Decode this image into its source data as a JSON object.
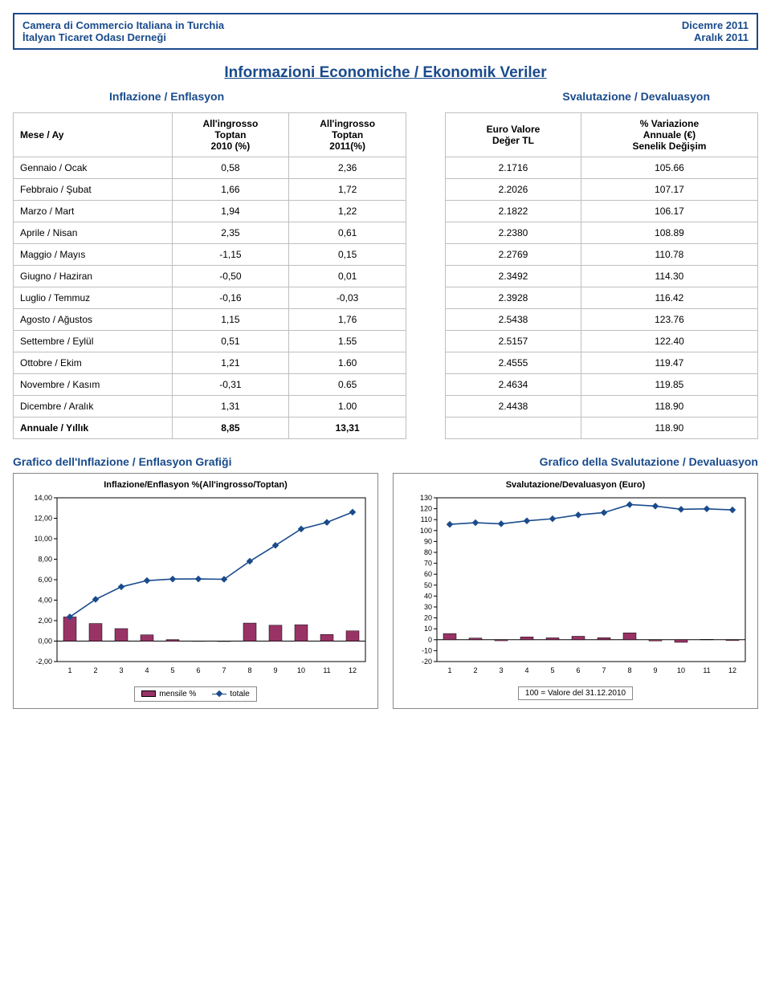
{
  "header": {
    "left1": "Camera di Commercio Italiana in Turchia",
    "left2": "İtalyan Ticaret Odası Derneği",
    "right1": "Dicemre 2011",
    "right2": "Aralık 2011"
  },
  "titles": {
    "main": "Informazioni Economiche / Ekonomik Veriler",
    "sub_left": "Inflazione / Enflasyon",
    "sub_right": "Svalutazione / Devaluasyon",
    "chart_left_heading": "Grafico dell'Inflazione / Enflasyon Grafiği",
    "chart_right_heading": "Grafico della Svalutazione / Devaluasyon"
  },
  "inflation_table": {
    "headers": {
      "col1": "Mese / Ay",
      "col2": "All'ingrosso\nToptan\n2010 (%)",
      "col3": "All'ingrosso\nToptan\n2011(%)"
    },
    "rows": [
      [
        "Gennaio / Ocak",
        "0,58",
        "2,36"
      ],
      [
        "Febbraio / Şubat",
        "1,66",
        "1,72"
      ],
      [
        "Marzo / Mart",
        "1,94",
        "1,22"
      ],
      [
        "Aprile / Nisan",
        "2,35",
        "0,61"
      ],
      [
        "Maggio / Mayıs",
        "-1,15",
        "0,15"
      ],
      [
        "Giugno / Haziran",
        "-0,50",
        "0,01"
      ],
      [
        "Luglio / Temmuz",
        "-0,16",
        "-0,03"
      ],
      [
        "Agosto / Ağustos",
        "1,15",
        "1,76"
      ],
      [
        "Settembre / Eylül",
        "0,51",
        "1.55"
      ],
      [
        "Ottobre / Ekim",
        "1,21",
        "1.60"
      ],
      [
        "Novembre / Kasım",
        "-0,31",
        "0.65"
      ],
      [
        "Dicembre / Aralık",
        "1,31",
        "1.00"
      ],
      [
        "Annuale / Yıllık",
        "8,85",
        "13,31"
      ]
    ]
  },
  "deval_table": {
    "headers": {
      "col1": "Euro Valore\nDeğer TL",
      "col2": "% Variazione\nAnnuale (€)\nSenelik Değişim"
    },
    "rows": [
      [
        "2.1716",
        "105.66"
      ],
      [
        "2.2026",
        "107.17"
      ],
      [
        "2.1822",
        "106.17"
      ],
      [
        "2.2380",
        "108.89"
      ],
      [
        "2.2769",
        "110.78"
      ],
      [
        "2.3492",
        "114.30"
      ],
      [
        "2.3928",
        "116.42"
      ],
      [
        "2.5438",
        "123.76"
      ],
      [
        "2.5157",
        "122.40"
      ],
      [
        "2.4555",
        "119.47"
      ],
      [
        "2.4634",
        "119.85"
      ],
      [
        "2.4438",
        "118.90"
      ],
      [
        "",
        "118.90"
      ]
    ]
  },
  "inflation_chart": {
    "title": "Inflazione/Enflasyon %(All'ingrosso/Toptan)",
    "type": "bar+line",
    "x_labels": [
      "1",
      "2",
      "3",
      "4",
      "5",
      "6",
      "7",
      "8",
      "9",
      "10",
      "11",
      "12"
    ],
    "bar_values": [
      2.36,
      1.72,
      1.22,
      0.61,
      0.15,
      0.01,
      -0.03,
      1.76,
      1.55,
      1.6,
      0.65,
      1.0
    ],
    "line_values": [
      2.36,
      4.08,
      5.3,
      5.91,
      6.06,
      6.07,
      6.04,
      7.8,
      9.35,
      10.95,
      11.6,
      12.6
    ],
    "y_ticks": [
      "-2,00",
      "0,00",
      "2,00",
      "4,00",
      "6,00",
      "8,00",
      "10,00",
      "12,00",
      "14,00"
    ],
    "ylim": [
      -2,
      14
    ],
    "colors": {
      "bar": "#993366",
      "line": "#1a4b8c",
      "axis": "#000000",
      "grid": "#bfbfbf",
      "bg": "#ffffff"
    },
    "legend_bar": "mensile %",
    "legend_line": "totale"
  },
  "deval_chart": {
    "title": "Svalutazione/Devaluasyon (Euro)",
    "type": "bar+line",
    "x_labels": [
      "1",
      "2",
      "3",
      "4",
      "5",
      "6",
      "7",
      "8",
      "9",
      "10",
      "11",
      "12"
    ],
    "bar_values": [
      5.66,
      1.51,
      -0.93,
      2.56,
      1.74,
      3.18,
      1.86,
      6.32,
      -1.1,
      -2.37,
      0.32,
      -0.79
    ],
    "line_values": [
      105.66,
      107.17,
      106.17,
      108.89,
      110.78,
      114.3,
      116.42,
      123.76,
      122.4,
      119.47,
      119.85,
      118.9
    ],
    "y_ticks": [
      "-20",
      "-10",
      "0",
      "10",
      "20",
      "30",
      "40",
      "50",
      "60",
      "70",
      "80",
      "90",
      "100",
      "110",
      "120",
      "130"
    ],
    "ylim": [
      -20,
      130
    ],
    "colors": {
      "bar": "#993366",
      "line": "#1a4b8c",
      "axis": "#000000",
      "grid": "#bfbfbf",
      "bg": "#ffffff"
    },
    "footnote": "100 = Valore del 31.12.2010"
  }
}
